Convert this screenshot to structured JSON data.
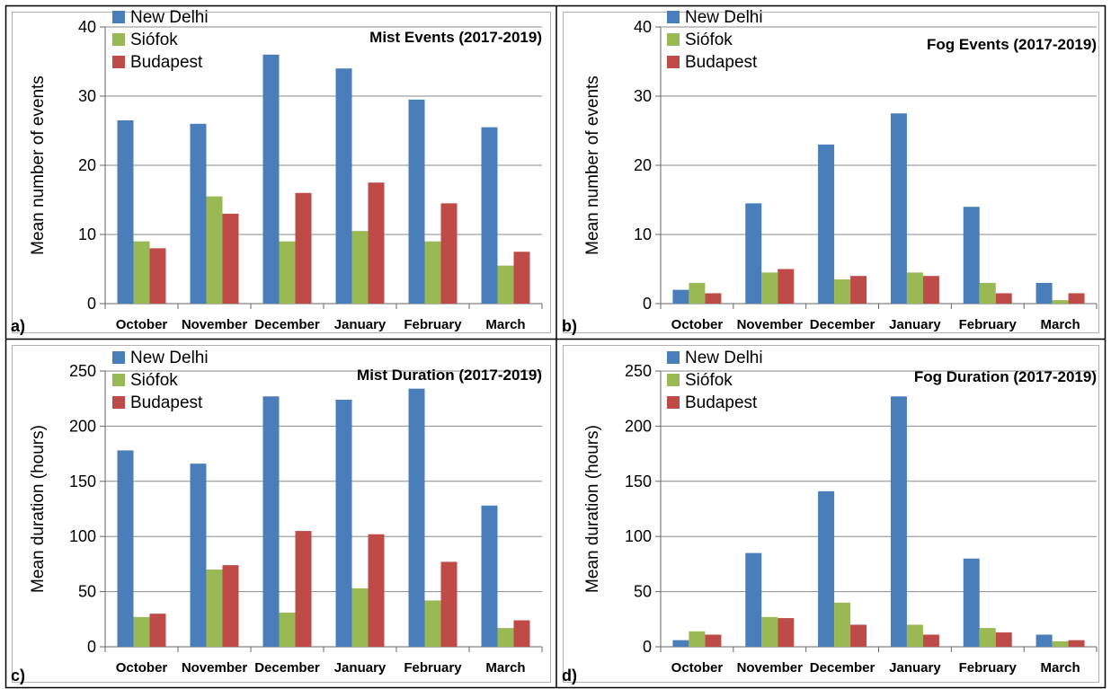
{
  "colors": {
    "new_delhi": "#4a7ebb",
    "siofok": "#98b954",
    "budapest": "#be4b48",
    "grid": "#888888",
    "frame": "#000000"
  },
  "chart_data": [
    {
      "panel": "a)",
      "type": "bar",
      "title": "Mist Events (2017-2019)",
      "ylabel": "Mean number of events",
      "xlabel": "",
      "ylim": [
        0,
        40
      ],
      "yticks": [
        0,
        10,
        20,
        30,
        40
      ],
      "grid": true,
      "legend": "top-left",
      "categories": [
        "October",
        "November",
        "December",
        "January",
        "February",
        "March"
      ],
      "series": [
        {
          "name": "New Delhi",
          "values": [
            26.5,
            26,
            36,
            34,
            29.5,
            25.5
          ]
        },
        {
          "name": "Siófok",
          "values": [
            9,
            15.5,
            9,
            10.5,
            9,
            5.5
          ]
        },
        {
          "name": "Budapest",
          "values": [
            8,
            13,
            16,
            17.5,
            14.5,
            7.5
          ]
        }
      ]
    },
    {
      "panel": "b)",
      "type": "bar",
      "title": "Fog Events (2017-2019)",
      "ylabel": "Mean number of events",
      "xlabel": "",
      "ylim": [
        0,
        40
      ],
      "yticks": [
        0,
        10,
        20,
        30,
        40
      ],
      "grid": true,
      "legend": "top-left",
      "categories": [
        "October",
        "November",
        "December",
        "January",
        "February",
        "March"
      ],
      "series": [
        {
          "name": "New Delhi",
          "values": [
            2,
            14.5,
            23,
            27.5,
            14,
            3
          ]
        },
        {
          "name": "Siófok",
          "values": [
            3,
            4.5,
            3.5,
            4.5,
            3,
            0.5
          ]
        },
        {
          "name": "Budapest",
          "values": [
            1.5,
            5,
            4,
            4,
            1.5,
            1.5
          ]
        }
      ]
    },
    {
      "panel": "c)",
      "type": "bar",
      "title": "Mist Duration (2017-2019)",
      "ylabel": "Mean duration  (hours)",
      "xlabel": "",
      "ylim": [
        0,
        250
      ],
      "yticks": [
        0,
        50,
        100,
        150,
        200,
        250
      ],
      "grid": true,
      "legend": "top-left",
      "categories": [
        "October",
        "November",
        "December",
        "January",
        "February",
        "March"
      ],
      "series": [
        {
          "name": "New Delhi",
          "values": [
            178,
            166,
            227,
            224,
            234,
            128
          ]
        },
        {
          "name": "Siófok",
          "values": [
            27,
            70,
            31,
            53,
            42,
            17
          ]
        },
        {
          "name": "Budapest",
          "values": [
            30,
            74,
            105,
            102,
            77,
            24
          ]
        }
      ]
    },
    {
      "panel": "d)",
      "type": "bar",
      "title": "Fog Duration (2017-2019)",
      "ylabel": "Mean duration  (hours)",
      "xlabel": "",
      "ylim": [
        0,
        250
      ],
      "yticks": [
        0,
        50,
        100,
        150,
        200,
        250
      ],
      "grid": true,
      "legend": "top-left",
      "categories": [
        "October",
        "November",
        "December",
        "January",
        "February",
        "March"
      ],
      "series": [
        {
          "name": "New Delhi",
          "values": [
            6,
            85,
            141,
            227,
            80,
            11
          ]
        },
        {
          "name": "Siófok",
          "values": [
            14,
            27,
            40,
            20,
            17,
            5
          ]
        },
        {
          "name": "Budapest",
          "values": [
            11,
            26,
            20,
            11,
            13,
            6
          ]
        }
      ]
    }
  ]
}
